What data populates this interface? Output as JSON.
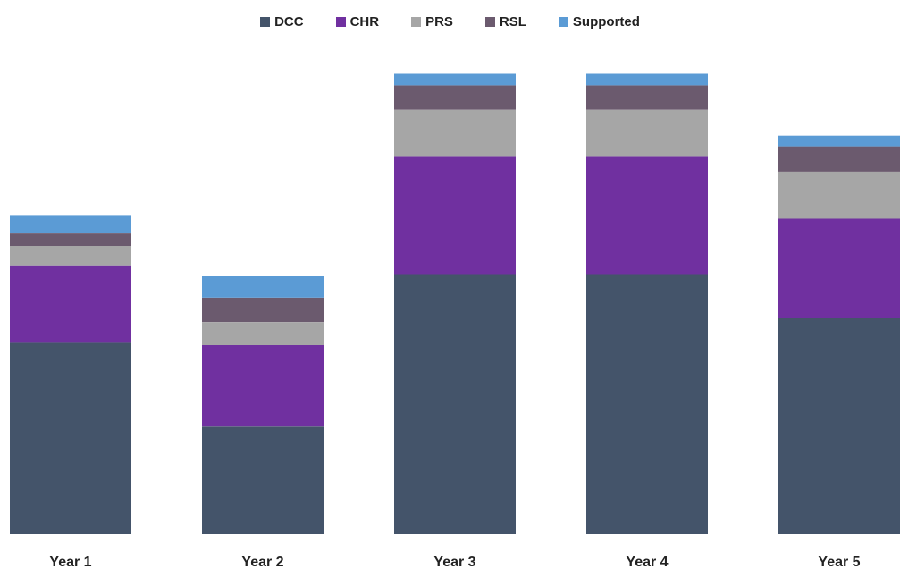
{
  "chart_data": {
    "type": "bar",
    "stacked": true,
    "title": "",
    "xlabel": "",
    "ylabel": "",
    "categories": [
      "Year 1",
      "Year 2",
      "Year 3",
      "Year 4",
      "Year 5"
    ],
    "ylim": [
      0,
      100
    ],
    "grid": false,
    "legend_position": "top",
    "series": [
      {
        "name": "DCC",
        "color": "#44546a",
        "values": [
          41.6,
          23.4,
          56.3,
          56.3,
          46.9
        ]
      },
      {
        "name": "CHR",
        "color": "#7030a0",
        "values": [
          16.6,
          17.7,
          25.6,
          25.6,
          21.6
        ]
      },
      {
        "name": "PRS",
        "color": "#a6a6a6",
        "values": [
          4.4,
          4.8,
          10.2,
          10.2,
          10.2
        ]
      },
      {
        "name": "RSL",
        "color": "#6b5a6e",
        "values": [
          2.7,
          5.3,
          5.3,
          5.3,
          5.3
        ]
      },
      {
        "name": "Supported",
        "color": "#5b9bd5",
        "values": [
          3.8,
          4.8,
          2.5,
          2.5,
          2.5
        ]
      }
    ]
  }
}
